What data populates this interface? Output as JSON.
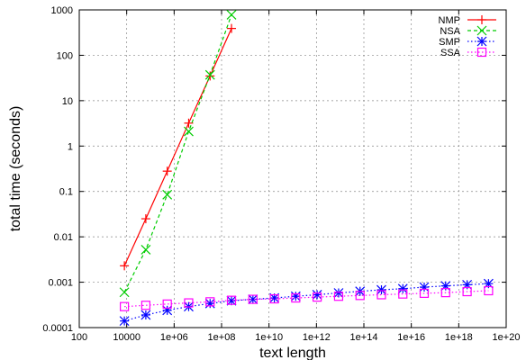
{
  "chart_data": {
    "type": "line",
    "xlabel": "text length",
    "ylabel": "total time (seconds)",
    "x_scale": "log",
    "y_scale": "log",
    "xlim": [
      100,
      1e+20
    ],
    "ylim": [
      0.0001,
      1000
    ],
    "grid": true,
    "legend_position": "top-right",
    "x_ticks": [
      {
        "value": 100,
        "label": "100"
      },
      {
        "value": 10000,
        "label": "10000"
      },
      {
        "value": 1000000.0,
        "label": "1e+06"
      },
      {
        "value": 100000000.0,
        "label": "1e+08"
      },
      {
        "value": 10000000000.0,
        "label": "1e+10"
      },
      {
        "value": 1000000000000.0,
        "label": "1e+12"
      },
      {
        "value": 100000000000000.0,
        "label": "1e+14"
      },
      {
        "value": 1e+16,
        "label": "1e+16"
      },
      {
        "value": 1e+18,
        "label": "1e+18"
      },
      {
        "value": 1e+20,
        "label": "1e+20"
      }
    ],
    "y_ticks": [
      {
        "value": 0.0001,
        "label": "0.0001"
      },
      {
        "value": 0.001,
        "label": "0.001"
      },
      {
        "value": 0.01,
        "label": "0.01"
      },
      {
        "value": 0.1,
        "label": "0.1"
      },
      {
        "value": 1,
        "label": "1"
      },
      {
        "value": 10,
        "label": "10"
      },
      {
        "value": 100,
        "label": "100"
      },
      {
        "value": 1000,
        "label": "1000"
      }
    ],
    "series": [
      {
        "name": "NMP",
        "color": "#ff0000",
        "marker": "plus",
        "dash": "solid",
        "points": [
          [
            8000,
            0.0023
          ],
          [
            64000.0,
            0.025
          ],
          [
            512000.0,
            0.28
          ],
          [
            4100000.0,
            3.2
          ],
          [
            32800000.0,
            35
          ],
          [
            262000000.0,
            390
          ]
        ]
      },
      {
        "name": "NSA",
        "color": "#00cc00",
        "marker": "cross",
        "dash": "dashed",
        "points": [
          [
            8000,
            0.0006
          ],
          [
            64000.0,
            0.0052
          ],
          [
            512000.0,
            0.085
          ],
          [
            4100000.0,
            2.1
          ],
          [
            32800000.0,
            37
          ],
          [
            262000000.0,
            780
          ]
        ]
      },
      {
        "name": "SMP",
        "color": "#0000ff",
        "marker": "star",
        "dash": "dotted",
        "points": [
          [
            8000,
            0.00014
          ],
          [
            64000.0,
            0.00019
          ],
          [
            512000.0,
            0.00024
          ],
          [
            4100000.0,
            0.00029
          ],
          [
            32800000.0,
            0.00034
          ],
          [
            262000000.0,
            0.00039
          ],
          [
            2100000000.0,
            0.00042
          ],
          [
            16800000000.0,
            0.00045
          ],
          [
            134000000000.0,
            0.00049
          ],
          [
            1070000000000.0,
            0.00053
          ],
          [
            8600000000000.0,
            0.00058
          ],
          [
            69000000000000.0,
            0.00063
          ],
          [
            550000000000000.0,
            0.00068
          ],
          [
            4400000000000000.0,
            0.00072
          ],
          [
            3.5e+16,
            0.00078
          ],
          [
            2.8e+17,
            0.00083
          ],
          [
            2.25e+18,
            0.00088
          ],
          [
            1.8e+19,
            0.00093
          ]
        ]
      },
      {
        "name": "SSA",
        "color": "#ff00ff",
        "marker": "square",
        "dash": "dotted",
        "points": [
          [
            8000,
            0.00029
          ],
          [
            64000.0,
            0.00031
          ],
          [
            512000.0,
            0.00033
          ],
          [
            4100000.0,
            0.00035
          ],
          [
            32800000.0,
            0.00037
          ],
          [
            262000000.0,
            0.0004
          ],
          [
            2100000000.0,
            0.00042
          ],
          [
            16800000000.0,
            0.00043
          ],
          [
            134000000000.0,
            0.00045
          ],
          [
            1070000000000.0,
            0.00047
          ],
          [
            8600000000000.0,
            0.00049
          ],
          [
            69000000000000.0,
            0.00051
          ],
          [
            550000000000000.0,
            0.00053
          ],
          [
            4400000000000000.0,
            0.00055
          ],
          [
            3.5e+16,
            0.00057
          ],
          [
            2.8e+17,
            0.00059
          ],
          [
            2.25e+18,
            0.00062
          ],
          [
            1.8e+19,
            0.00065
          ]
        ]
      }
    ]
  }
}
